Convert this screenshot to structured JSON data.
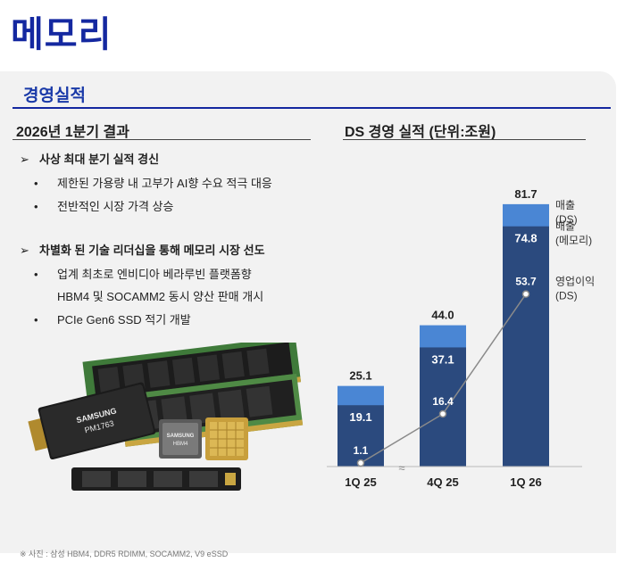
{
  "page_title": "메모리",
  "section_title": "경영실적",
  "left": {
    "heading": "2026년 1분기 결과",
    "groups": [
      {
        "arrow": "➢",
        "title": "사상 최대 분기 실적 경신",
        "bullets": [
          "제한된 가용량 내 고부가 AI향 수요 적극 대응",
          "전반적인 시장 가격 상승"
        ]
      },
      {
        "arrow": "➢",
        "title": "차별화 된 기술 리더십을 통해 메모리 시장 선도",
        "bullets": [
          "업계 최초로 엔비디아 베라루빈 플랫폼향",
          "PCIe Gen6 SSD 적기 개발"
        ],
        "continuation": "HBM4 및 SOCAMM2 동시 양산 판매 개시"
      }
    ],
    "bullet_char": "•",
    "product_labels": {
      "ssd_brand": "SAMSUNG",
      "ssd_model": "PM1763",
      "hbm_brand": "SAMSUNG",
      "hbm_model": "HBM4"
    },
    "caption": "※ 사진 : 삼성 HBM4, DDR5 RDIMM, SOCAMM2, V9 eSSD"
  },
  "right": {
    "heading": "DS 경영 실적 (단위:조원)"
  },
  "chart_data": {
    "type": "bar",
    "stacked": true,
    "categories": [
      "1Q 25",
      "4Q 25",
      "1Q 26"
    ],
    "series": [
      {
        "name": "매출 (메모리)",
        "values": [
          19.1,
          37.1,
          74.8
        ],
        "color": "#2b4a7e"
      },
      {
        "name": "매출 (DS)",
        "values": [
          25.1,
          44.0,
          81.7
        ],
        "color": "#4a86d4"
      },
      {
        "name": "영업이익 (DS)",
        "values": [
          1.1,
          16.4,
          53.7
        ],
        "type": "line",
        "color": "#8a8a8a"
      }
    ],
    "value_labels": {
      "ds_total": [
        "25.1",
        "44.0",
        "81.7"
      ],
      "memory": [
        "19.1",
        "37.1",
        "74.8"
      ],
      "op_profit": [
        "1.1",
        "16.4",
        "53.7"
      ]
    },
    "legend": [
      {
        "line1": "매출",
        "line2": "(DS)"
      },
      {
        "line1": "매출",
        "line2": "(메모리)"
      },
      {
        "line1": "영업이익",
        "line2": "(DS)"
      }
    ],
    "axis_break": "≈",
    "ylim": [
      0,
      90
    ],
    "legend_position": "right"
  }
}
